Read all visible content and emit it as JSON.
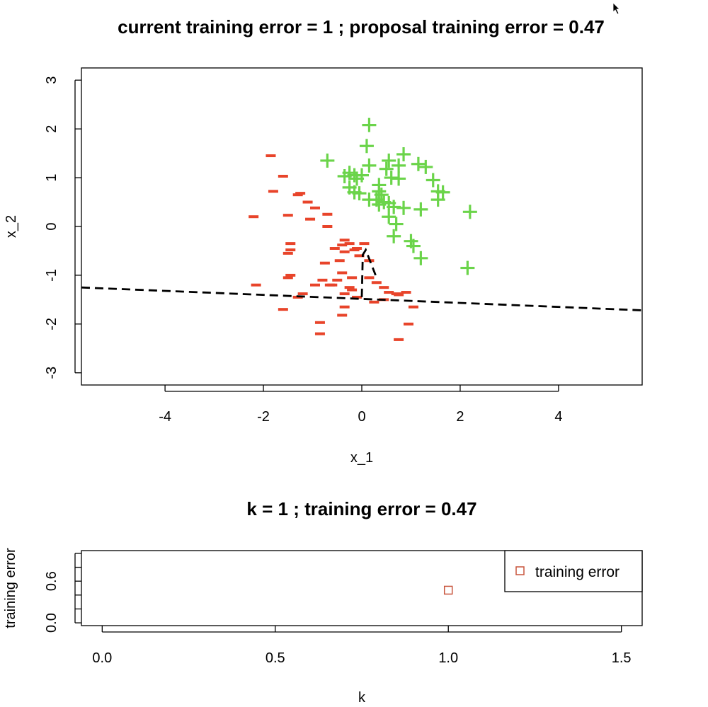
{
  "colors": {
    "minus": "#e8442a",
    "plus": "#6bd44a",
    "line": "#000000",
    "marker": "#c8553d"
  },
  "top_title": "current training error =  1 ; proposal training error =  0.47",
  "bottom_title": "k =  1 ; training error =  0.47",
  "cursor_icon": "mouse-pointer-icon",
  "chart_data": [
    {
      "type": "scatter",
      "title": "current training error =  1 ; proposal training error =  0.47",
      "xlabel": "x_1",
      "ylabel": "x_2",
      "xlim": [
        -5.7,
        5.7
      ],
      "ylim": [
        -3.25,
        3.25
      ],
      "xticks": [
        -4,
        -2,
        0,
        2,
        4
      ],
      "yticks": [
        -3,
        -2,
        -1,
        0,
        1,
        2,
        3
      ],
      "xtick_labels": [
        "-4",
        "-2",
        "0",
        "2",
        "4"
      ],
      "ytick_labels": [
        "-3",
        "-2",
        "-1",
        "0",
        "1",
        "2",
        "3"
      ],
      "series": [
        {
          "marker": "-",
          "color": "#e8442a",
          "points": [
            [
              -1.85,
              1.45
            ],
            [
              -1.6,
              1.03
            ],
            [
              -1.8,
              0.72
            ],
            [
              -1.3,
              0.65
            ],
            [
              -1.25,
              0.68
            ],
            [
              -1.1,
              0.5
            ],
            [
              -0.95,
              0.38
            ],
            [
              -1.5,
              0.23
            ],
            [
              -1.05,
              0.15
            ],
            [
              -0.7,
              0.25
            ],
            [
              -2.2,
              0.2
            ],
            [
              -0.7,
              0.0
            ],
            [
              -0.35,
              -0.28
            ],
            [
              -0.4,
              -0.38
            ],
            [
              -0.25,
              -0.35
            ],
            [
              -0.55,
              -0.45
            ],
            [
              -0.35,
              -0.52
            ],
            [
              -0.15,
              -0.48
            ],
            [
              0.05,
              -0.35
            ],
            [
              -0.1,
              -0.45
            ],
            [
              -1.45,
              -0.35
            ],
            [
              -1.45,
              -0.48
            ],
            [
              -1.5,
              -0.55
            ],
            [
              -0.05,
              -0.6
            ],
            [
              0.15,
              -0.7
            ],
            [
              -0.45,
              -0.7
            ],
            [
              -0.75,
              -0.75
            ],
            [
              -1.45,
              -1.0
            ],
            [
              -1.5,
              -1.05
            ],
            [
              -0.4,
              -0.95
            ],
            [
              -0.8,
              -1.1
            ],
            [
              -0.5,
              -1.1
            ],
            [
              -0.2,
              -1.05
            ],
            [
              -0.6,
              -1.2
            ],
            [
              -0.65,
              -1.2
            ],
            [
              -0.95,
              -1.2
            ],
            [
              -0.25,
              -1.25
            ],
            [
              -0.2,
              -1.3
            ],
            [
              0.15,
              -1.05
            ],
            [
              0.3,
              -1.15
            ],
            [
              0.45,
              -1.25
            ],
            [
              -2.15,
              -1.2
            ],
            [
              -1.2,
              -1.38
            ],
            [
              -1.3,
              -1.45
            ],
            [
              -0.35,
              -1.38
            ],
            [
              -0.1,
              -1.45
            ],
            [
              0.55,
              -1.35
            ],
            [
              0.7,
              -1.38
            ],
            [
              0.75,
              -1.4
            ],
            [
              0.9,
              -1.35
            ],
            [
              0.25,
              -1.55
            ],
            [
              0.45,
              -1.5
            ],
            [
              1.05,
              -1.65
            ],
            [
              -0.35,
              -1.65
            ],
            [
              -1.6,
              -1.7
            ],
            [
              -0.4,
              -1.82
            ],
            [
              -0.85,
              -1.97
            ],
            [
              0.95,
              -2.0
            ],
            [
              -0.85,
              -2.2
            ],
            [
              0.75,
              -2.32
            ]
          ]
        },
        {
          "marker": "+",
          "color": "#6bd44a",
          "points": [
            [
              0.15,
              2.08
            ],
            [
              0.1,
              1.65
            ],
            [
              -0.7,
              1.35
            ],
            [
              0.85,
              1.48
            ],
            [
              0.55,
              1.35
            ],
            [
              1.15,
              1.28
            ],
            [
              0.75,
              1.25
            ],
            [
              1.3,
              1.22
            ],
            [
              0.15,
              1.25
            ],
            [
              0.5,
              1.18
            ],
            [
              -0.25,
              1.1
            ],
            [
              -0.15,
              1.05
            ],
            [
              -0.35,
              1.03
            ],
            [
              0.0,
              1.05
            ],
            [
              -0.1,
              0.98
            ],
            [
              0.6,
              1.0
            ],
            [
              0.75,
              0.98
            ],
            [
              1.45,
              0.95
            ],
            [
              0.35,
              0.85
            ],
            [
              -0.25,
              0.8
            ],
            [
              1.55,
              0.72
            ],
            [
              1.65,
              0.7
            ],
            [
              -0.15,
              0.7
            ],
            [
              -0.05,
              0.68
            ],
            [
              0.35,
              0.72
            ],
            [
              0.4,
              0.65
            ],
            [
              0.3,
              0.55
            ],
            [
              0.15,
              0.55
            ],
            [
              0.45,
              0.5
            ],
            [
              0.35,
              0.45
            ],
            [
              1.55,
              0.55
            ],
            [
              0.55,
              0.48
            ],
            [
              0.65,
              0.4
            ],
            [
              0.85,
              0.38
            ],
            [
              1.2,
              0.35
            ],
            [
              2.2,
              0.3
            ],
            [
              0.55,
              0.2
            ],
            [
              0.7,
              0.05
            ],
            [
              0.65,
              -0.2
            ],
            [
              1.0,
              -0.3
            ],
            [
              1.05,
              -0.4
            ],
            [
              1.2,
              -0.65
            ],
            [
              2.15,
              -0.85
            ]
          ]
        }
      ],
      "lines": [
        {
          "style": "dashed",
          "points": [
            [
              -5.7,
              -1.25
            ],
            [
              5.7,
              -1.72
            ]
          ]
        },
        {
          "style": "dashed",
          "points": [
            [
              0.0,
              -1.45
            ],
            [
              0.02,
              -0.58
            ],
            [
              0.08,
              -0.48
            ],
            [
              0.28,
              -1.0
            ]
          ]
        }
      ]
    },
    {
      "type": "scatter",
      "title": "k =  1 ; training error =  0.47",
      "xlabel": "k",
      "ylabel": "training error",
      "xlim": [
        -0.06,
        1.56
      ],
      "ylim": [
        -0.04,
        1.04
      ],
      "xticks": [
        0.0,
        0.5,
        1.0,
        1.5
      ],
      "yticks": [
        0.0,
        0.6
      ],
      "xtick_labels": [
        "0.0",
        "0.5",
        "1.0",
        "1.5"
      ],
      "ytick_labels": [
        "0.0",
        "0.6"
      ],
      "legend": {
        "label": "training error",
        "position": "top-right"
      },
      "series": [
        {
          "name": "training error",
          "marker": "square-open",
          "color": "#c8553d",
          "points": [
            [
              1.0,
              0.47
            ]
          ]
        }
      ]
    }
  ]
}
